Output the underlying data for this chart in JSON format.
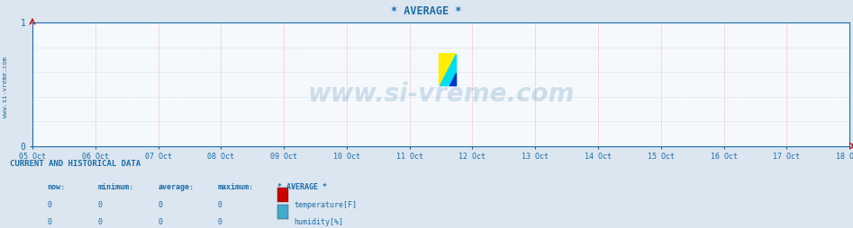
{
  "title": "* AVERAGE *",
  "title_color": "#1a6ca8",
  "bg_color": "#dce6f0",
  "plot_bg_color": "#f5f8fc",
  "x_ticks": [
    "05 Oct",
    "06 Oct",
    "07 Oct",
    "08 Oct",
    "09 Oct",
    "10 Oct",
    "11 Oct",
    "12 Oct",
    "13 Oct",
    "14 Oct",
    "15 Oct",
    "16 Oct",
    "17 Oct",
    "18 Oct"
  ],
  "y_min": 0,
  "y_max": 1,
  "y_ticks": [
    0,
    1
  ],
  "axis_color": "#1a6ca8",
  "vgrid_color": "#e8a0a0",
  "hgrid_color": "#c0c8d8",
  "arrow_color": "#cc0000",
  "watermark_text": "www.si-vreme.com",
  "watermark_color": "#1a6ca8",
  "watermark_alpha": 0.18,
  "sidebar_text": "www.si-vreme.com",
  "sidebar_color": "#1a6ca8",
  "legend_title": "* AVERAGE *",
  "legend_items": [
    {
      "label": "temperature[F]",
      "color": "#cc0000"
    },
    {
      "label": "humidity[%]",
      "color": "#44aacc"
    }
  ],
  "table_header": [
    "now:",
    "minimum:",
    "average:",
    "maximum:"
  ],
  "table_rows": [
    [
      0,
      0,
      0,
      0
    ],
    [
      0,
      0,
      0,
      0
    ]
  ],
  "section_title": "CURRENT AND HISTORICAL DATA",
  "font_color": "#1a6ca8",
  "logo_yellow": "#ffee00",
  "logo_cyan": "#00ddee",
  "logo_blue": "#0033cc"
}
